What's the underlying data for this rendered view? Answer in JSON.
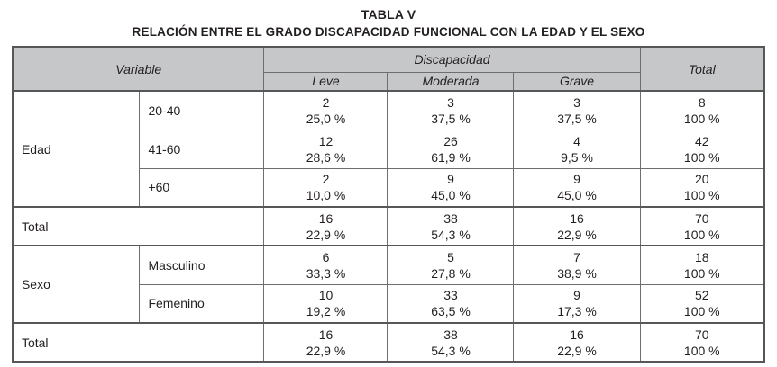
{
  "page": {
    "title": "TABLA V",
    "subtitle": "RELACIÓN ENTRE EL GRADO DISCAPACIDAD FUNCIONAL CON LA EDAD Y EL SEXO"
  },
  "colors": {
    "header_bg": "#c6c7c9",
    "border_inner": "#6d6e70",
    "border_outer": "#565759",
    "text": "#231f20"
  },
  "table": {
    "headers": {
      "variable": "Variable",
      "discapacidad": "Discapacidad",
      "leve": "Leve",
      "moderada": "Moderada",
      "grave": "Grave",
      "total": "Total"
    },
    "rows": [
      {
        "group": "Edad",
        "label": "20-40",
        "cells": [
          {
            "n": "2",
            "pct": "25,0 %"
          },
          {
            "n": "3",
            "pct": "37,5 %"
          },
          {
            "n": "3",
            "pct": "37,5 %"
          },
          {
            "n": "8",
            "pct": "100 %"
          }
        ]
      },
      {
        "label": "41-60",
        "cells": [
          {
            "n": "12",
            "pct": "28,6 %"
          },
          {
            "n": "26",
            "pct": "61,9 %"
          },
          {
            "n": "4",
            "pct": "9,5 %"
          },
          {
            "n": "42",
            "pct": "100 %"
          }
        ]
      },
      {
        "label": "+60",
        "cells": [
          {
            "n": "2",
            "pct": "10,0 %"
          },
          {
            "n": "9",
            "pct": "45,0 %"
          },
          {
            "n": "9",
            "pct": "45,0 %"
          },
          {
            "n": "20",
            "pct": "100 %"
          }
        ]
      },
      {
        "label": "Total",
        "is_total": true,
        "cells": [
          {
            "n": "16",
            "pct": "22,9 %"
          },
          {
            "n": "38",
            "pct": "54,3 %"
          },
          {
            "n": "16",
            "pct": "22,9 %"
          },
          {
            "n": "70",
            "pct": "100 %"
          }
        ]
      },
      {
        "group": "Sexo",
        "label": "Masculino",
        "cells": [
          {
            "n": "6",
            "pct": "33,3 %"
          },
          {
            "n": "5",
            "pct": "27,8 %"
          },
          {
            "n": "7",
            "pct": "38,9 %"
          },
          {
            "n": "18",
            "pct": "100 %"
          }
        ]
      },
      {
        "label": "Femenino",
        "cells": [
          {
            "n": "10",
            "pct": "19,2 %"
          },
          {
            "n": "33",
            "pct": "63,5 %"
          },
          {
            "n": "9",
            "pct": "17,3 %"
          },
          {
            "n": "52",
            "pct": "100 %"
          }
        ]
      },
      {
        "label": "Total",
        "is_total": true,
        "cells": [
          {
            "n": "16",
            "pct": "22,9 %"
          },
          {
            "n": "38",
            "pct": "54,3 %"
          },
          {
            "n": "16",
            "pct": "22,9 %"
          },
          {
            "n": "70",
            "pct": "100 %"
          }
        ]
      }
    ]
  }
}
